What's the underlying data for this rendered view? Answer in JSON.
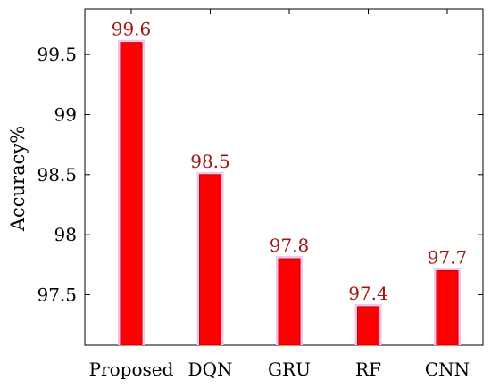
{
  "chart_data": {
    "type": "bar",
    "categories": [
      "Proposed",
      "DQN",
      "GRU",
      "RF",
      "CNN"
    ],
    "values": [
      99.6,
      98.5,
      97.8,
      97.4,
      97.7
    ],
    "data_labels": [
      "99.6",
      "98.5",
      "97.8",
      "97.4",
      "97.7"
    ],
    "title": "",
    "xlabel": "",
    "ylabel": "Accuracy%",
    "ylim": [
      97.08,
      99.88
    ],
    "yticks": [
      97.5,
      98,
      98.5,
      99,
      99.5
    ],
    "ytick_labels": [
      "97.5",
      "98",
      "98.5",
      "99",
      "99.5"
    ],
    "grid": false,
    "colors": {
      "bar_fill": "#ff0000",
      "bar_stroke": "#c00000",
      "bar_glow": "#f2c6f2",
      "data_label": "#a01414",
      "axis": "#000000"
    }
  }
}
